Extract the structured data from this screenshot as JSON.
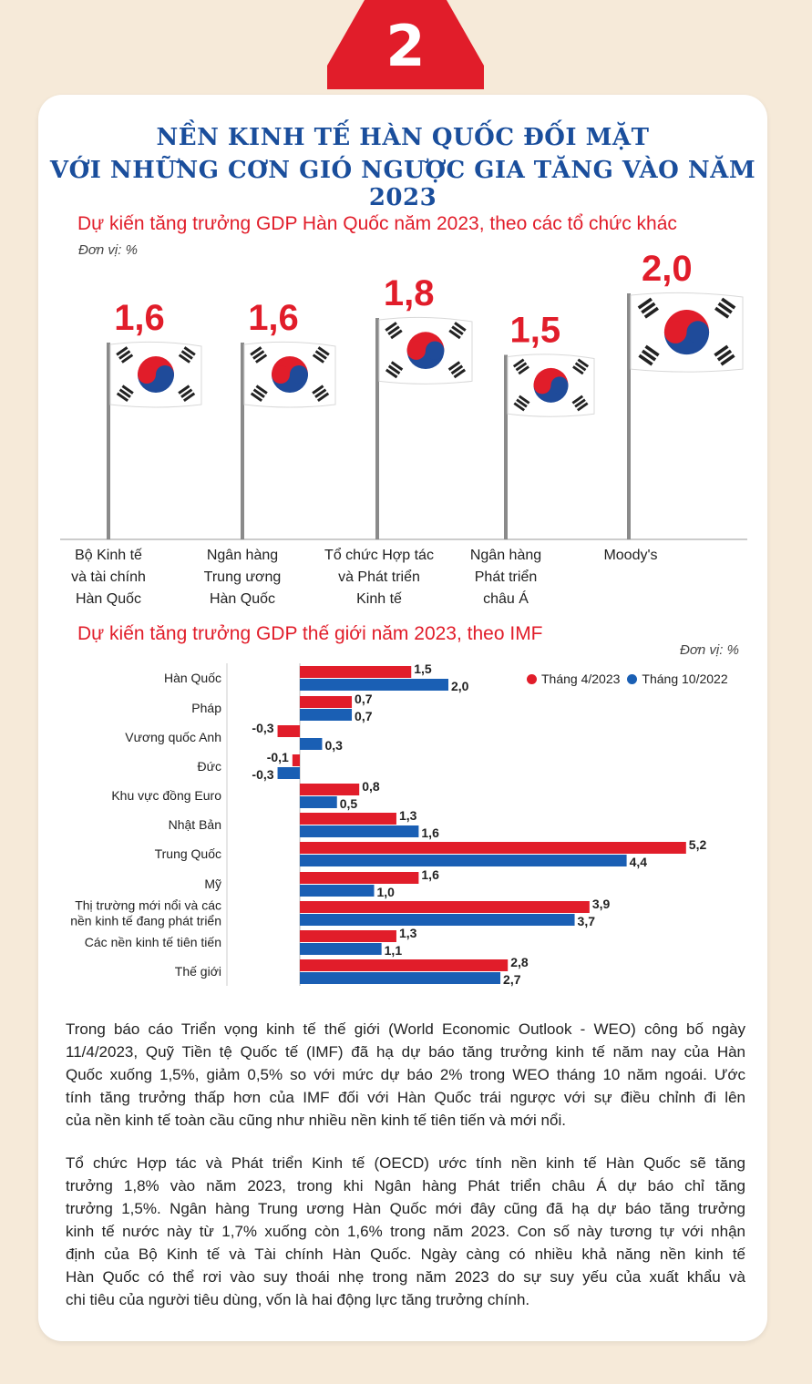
{
  "badge_number": "2",
  "title_line1": "NỀN KINH TẾ HÀN QUỐC ĐỐI MẶT",
  "title_line2": "VỚI NHỮNG CƠN GIÓ NGƯỢC GIA TĂNG VÀO NĂM 2023",
  "colors": {
    "red": "#e11d2a",
    "blue": "#1a5fb4",
    "title": "#1a4e9c",
    "background": "#f6ead9"
  },
  "chart_data": [
    {
      "type": "bar",
      "title": "Dự kiến tăng trưởng GDP Hàn Quốc năm 2023, theo các tổ chức khác",
      "unit_label": "Đơn vị: %",
      "marker": "flag-pole",
      "categories": [
        [
          "Bộ Kinh tế",
          "và tài chính",
          "Hàn Quốc"
        ],
        [
          "Ngân hàng",
          "Trung ương",
          "Hàn Quốc"
        ],
        [
          "Tổ chức Hợp tác",
          "và Phát triển",
          "Kinh tế"
        ],
        [
          "Ngân hàng",
          "Phát triển",
          "châu Á"
        ],
        [
          "Moody's"
        ]
      ],
      "values": [
        1.6,
        1.6,
        1.8,
        1.5,
        2.0
      ],
      "value_labels": [
        "1,6",
        "1,6",
        "1,8",
        "1,5",
        "2,0"
      ]
    },
    {
      "type": "bar",
      "orientation": "horizontal",
      "title": "Dự kiến tăng trưởng GDP thế giới năm 2023, theo IMF",
      "unit_label": "Đơn vị: %",
      "legend_position": "top-right",
      "categories": [
        [
          "Hàn Quốc"
        ],
        [
          "Pháp"
        ],
        [
          "Vương quốc Anh"
        ],
        [
          "Đức"
        ],
        [
          "Khu vực đồng Euro"
        ],
        [
          "Nhật Bản"
        ],
        [
          "Trung Quốc"
        ],
        [
          "Mỹ"
        ],
        [
          "Thị trường mới nổi và các",
          "nền kinh tế đang phát triển"
        ],
        [
          "Các nền kinh tế tiên tiến"
        ],
        [
          "Thế giới"
        ]
      ],
      "series": [
        {
          "name": "Tháng 4/2023",
          "color": "#e11d2a",
          "values": [
            1.5,
            0.7,
            -0.3,
            -0.1,
            0.8,
            1.3,
            5.2,
            1.6,
            3.9,
            1.3,
            2.8
          ],
          "labels": [
            "1,5",
            "0,7",
            "-0,3",
            "-0,1",
            "0,8",
            "1,3",
            "5,2",
            "1,6",
            "3,9",
            "1,3",
            "2,8"
          ]
        },
        {
          "name": "Tháng 10/2022",
          "color": "#1a5fb4",
          "values": [
            2.0,
            0.7,
            0.3,
            -0.3,
            0.5,
            1.6,
            4.4,
            1.0,
            3.7,
            1.1,
            2.7
          ],
          "labels": [
            "2,0",
            "0,7",
            "0,3",
            "-0,3",
            "0,5",
            "1,6",
            "4,4",
            "1,0",
            "3,7",
            "1,1",
            "2,7"
          ]
        }
      ]
    }
  ],
  "paragraphs": [
    [
      "Trong báo cáo Triển vọng kinh tế thế giới (World Economic Outlook - WEO) công bố ngày",
      "11/4/2023, Quỹ Tiền tệ Quốc tế (IMF) đã hạ dự báo tăng trưởng kinh tế năm nay của Hàn",
      "Quốc xuống 1,5%, giảm 0,5% so với mức dự báo 2% trong WEO tháng 10 năm ngoái. Ước",
      "tính tăng trưởng thấp hơn của IMF đối với Hàn Quốc trái ngược với sự điều chỉnh đi lên",
      "của nền kinh tế toàn cầu cũng như nhiều nền kinh tế tiên tiến và mới nổi."
    ],
    [
      "Tổ chức Hợp tác và Phát triển Kinh tế (OECD) ước tính nền kinh tế Hàn Quốc sẽ tăng",
      "trưởng 1,8% vào năm 2023, trong khi Ngân hàng Phát triển châu Á dự báo chỉ tăng",
      "trưởng 1,5%. Ngân hàng Trung ương Hàn Quốc mới đây cũng đã hạ dự báo tăng trưởng",
      "kinh tế nước này từ 1,7% xuống còn 1,6% trong năm 2023. Con số này tương tự với nhận",
      "định của Bộ Kinh tế và Tài chính Hàn Quốc. Ngày càng có nhiều khả năng nền kinh tế",
      "Hàn Quốc có thể rơi vào suy thoái nhẹ trong năm 2023 do sự suy yếu của xuất khẩu và",
      "chi tiêu của người tiêu dùng, vốn là hai động lực tăng trưởng chính."
    ]
  ]
}
